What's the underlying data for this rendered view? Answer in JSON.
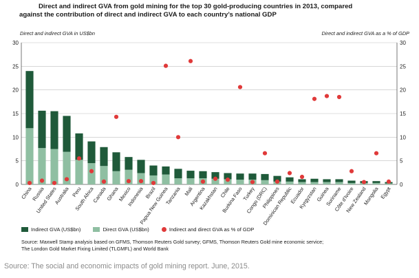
{
  "title_line1": "Direct and indirect GVA from gold mining for the top 30 gold-producing countries in 2013, compared",
  "title_line2": "against the contribution of direct and indirect GVA to each country’s national GDP",
  "left_axis_title": "Direct and indirect GVA in US$bn",
  "right_axis_title": "Direct and indirect GVA as a % of GDP",
  "legend": {
    "indirect": "Indirect GVA (US$bn)",
    "direct": "Direct GVA (US$bn)",
    "pct": "Indirect and direct GVA as % of GDP"
  },
  "source_line1": "Source: Maxwell Stamp analysis based on GFMS, Thomson Reuters Gold survey; GFMS, Thomson Reuters Gold mine economic service;",
  "source_line2": "The London Gold Market Fixing Limited (TLGMFL) and World Bank",
  "caption": "Source: The social and economic impacts of gold mining report. June, 2015.",
  "colors": {
    "indirect": "#1f5a3a",
    "direct": "#8fbfa2",
    "pct": "#e03a3a",
    "grid": "#bfbfbf"
  },
  "chart_data": {
    "type": "bar",
    "stacked": true,
    "categories": [
      "China",
      "Russia",
      "United States",
      "Australia",
      "Peru",
      "South Africa",
      "Canada",
      "Ghana",
      "Mexico",
      "Indonesia",
      "Brazil",
      "Papua New Guinea",
      "Tanzania",
      "Mali",
      "Argentina",
      "Kazakhstan",
      "Chile",
      "Burkina Faso",
      "Turkey",
      "Congo (DRC)",
      "Philippines",
      "Dominican Republic",
      "Ecuador",
      "Kyrgyzstan",
      "Guinea",
      "Suriname",
      "Côte d'Ivoire",
      "New Zealand",
      "Mongolia",
      "Egypt"
    ],
    "series": [
      {
        "name": "Direct GVA (US$bn)",
        "values": [
          11.9,
          7.7,
          7.5,
          6.9,
          5.2,
          4.5,
          3.9,
          2.8,
          3.1,
          2.4,
          1.9,
          2.1,
          1.3,
          1.3,
          1.3,
          1.2,
          1.1,
          1.0,
          1.0,
          0.9,
          0.6,
          0.6,
          0.5,
          0.5,
          0.5,
          0.5,
          0.3,
          0.3,
          0.3,
          0.2
        ]
      },
      {
        "name": "Indirect GVA (US$bn)",
        "values": [
          12.1,
          7.9,
          8.0,
          7.6,
          5.6,
          4.6,
          4.0,
          4.0,
          2.7,
          2.8,
          2.1,
          1.7,
          2.0,
          1.6,
          1.5,
          1.4,
          1.3,
          1.3,
          1.3,
          1.3,
          1.2,
          0.9,
          0.6,
          0.7,
          0.6,
          0.6,
          0.5,
          0.4,
          0.4,
          0.3
        ]
      },
      {
        "name": "Indirect and direct GVA as % of GDP",
        "axis": "right",
        "values": [
          0.3,
          0.8,
          0.3,
          1.1,
          5.5,
          2.8,
          0.6,
          14.3,
          0.7,
          0.7,
          0.3,
          25.1,
          10.0,
          26.1,
          0.6,
          1.2,
          1.0,
          20.6,
          0.5,
          6.6,
          0.6,
          2.4,
          1.6,
          18.1,
          18.7,
          18.5,
          2.8,
          0.5,
          6.6,
          0.6
        ]
      }
    ],
    "yaxis_left": {
      "label": "Direct and indirect GVA in US$bn",
      "range": [
        0,
        30
      ],
      "ticks": [
        0,
        5,
        10,
        15,
        20,
        25,
        30
      ]
    },
    "yaxis_right": {
      "label": "Direct and indirect GVA as a % of GDP",
      "range": [
        0,
        30
      ],
      "ticks": [
        0,
        5,
        10,
        15,
        20,
        25,
        30
      ]
    },
    "grid": true,
    "legend_position": "bottom-left"
  }
}
